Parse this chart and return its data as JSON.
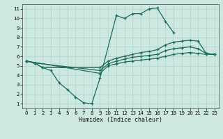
{
  "xlabel": "Humidex (Indice chaleur)",
  "bg_color": "#cce8e0",
  "grid_color": "#b0d8cc",
  "line_color": "#1a6b5a",
  "xlim": [
    -0.5,
    23.5
  ],
  "ylim": [
    0.5,
    11.5
  ],
  "xticks": [
    0,
    1,
    2,
    3,
    4,
    5,
    6,
    7,
    8,
    9,
    10,
    11,
    12,
    13,
    14,
    15,
    16,
    17,
    18,
    19,
    20,
    21,
    22,
    23
  ],
  "yticks": [
    1,
    2,
    3,
    4,
    5,
    6,
    7,
    8,
    9,
    10,
    11
  ],
  "curves": [
    {
      "x": [
        0,
        1,
        2,
        3,
        4,
        5,
        6,
        7,
        8,
        9,
        11,
        12,
        13,
        14,
        15,
        16,
        17,
        18
      ],
      "y": [
        5.5,
        5.3,
        4.8,
        4.5,
        3.2,
        2.5,
        1.7,
        1.1,
        1.0,
        3.7,
        10.3,
        10.0,
        10.5,
        10.5,
        11.0,
        11.1,
        9.7,
        8.5
      ]
    },
    {
      "x": [
        0,
        1,
        2,
        9,
        10,
        11,
        12,
        13,
        14,
        15,
        16,
        17,
        18,
        19,
        20,
        21,
        22,
        23
      ],
      "y": [
        5.5,
        5.3,
        4.8,
        4.8,
        5.5,
        5.8,
        6.0,
        6.2,
        6.4,
        6.5,
        6.7,
        7.2,
        7.5,
        7.6,
        7.7,
        7.6,
        6.3,
        6.2
      ]
    },
    {
      "x": [
        0,
        1,
        9,
        10,
        11,
        12,
        13,
        14,
        15,
        16,
        17,
        18,
        19,
        20,
        21,
        22,
        23
      ],
      "y": [
        5.5,
        5.3,
        4.5,
        5.2,
        5.5,
        5.7,
        5.9,
        6.0,
        6.1,
        6.2,
        6.6,
        6.8,
        6.9,
        7.0,
        6.8,
        6.3,
        6.2
      ]
    },
    {
      "x": [
        0,
        9,
        10,
        11,
        12,
        13,
        14,
        15,
        16,
        17,
        18,
        19,
        20,
        21,
        22,
        23
      ],
      "y": [
        5.5,
        4.2,
        5.0,
        5.2,
        5.4,
        5.5,
        5.6,
        5.7,
        5.8,
        6.0,
        6.2,
        6.3,
        6.4,
        6.3,
        6.2,
        6.2
      ]
    }
  ]
}
